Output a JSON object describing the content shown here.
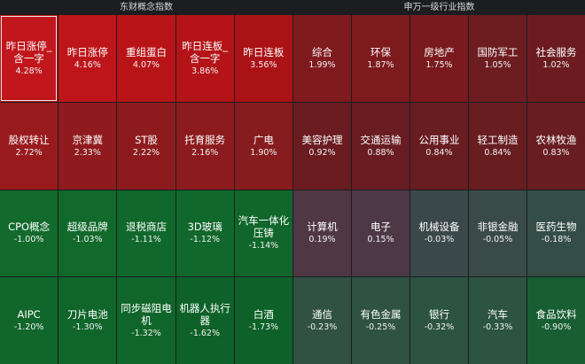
{
  "left_panel": {
    "title": "东财概念指数",
    "tiles": [
      {
        "name": "昨日涨停_含一字",
        "pct": "4.28%",
        "color": "#c0161c",
        "selected": true
      },
      {
        "name": "昨日涨停",
        "pct": "4.16%",
        "color": "#bd1519"
      },
      {
        "name": "重组蛋白",
        "pct": "4.07%",
        "color": "#b81418"
      },
      {
        "name": "昨日连板_含一字",
        "pct": "3.86%",
        "color": "#b41317"
      },
      {
        "name": "昨日连板",
        "pct": "3.56%",
        "color": "#ab1216"
      },
      {
        "name": "股权转让",
        "pct": "2.72%",
        "color": "#981a1d"
      },
      {
        "name": "京津冀",
        "pct": "2.33%",
        "color": "#901b1e"
      },
      {
        "name": "ST股",
        "pct": "2.22%",
        "color": "#8d1b1e"
      },
      {
        "name": "托育服务",
        "pct": "2.16%",
        "color": "#8c1b1e"
      },
      {
        "name": "广电",
        "pct": "1.90%",
        "color": "#871c1f"
      },
      {
        "name": "CPO概念",
        "pct": "-1.00%",
        "color": "#126a2d"
      },
      {
        "name": "超级品牌",
        "pct": "-1.03%",
        "color": "#11692c"
      },
      {
        "name": "退税商店",
        "pct": "-1.11%",
        "color": "#11682c"
      },
      {
        "name": "3D玻璃",
        "pct": "-1.12%",
        "color": "#11682c"
      },
      {
        "name": "汽车一体化压铸",
        "pct": "-1.14%",
        "color": "#11672b"
      },
      {
        "name": "AIPC",
        "pct": "-1.20%",
        "color": "#10662b"
      },
      {
        "name": "刀片电池",
        "pct": "-1.30%",
        "color": "#0f652a"
      },
      {
        "name": "同步磁阻电机",
        "pct": "-1.32%",
        "color": "#0f652a"
      },
      {
        "name": "机器人执行器",
        "pct": "-1.62%",
        "color": "#0e6229"
      },
      {
        "name": "白酒",
        "pct": "-1.73%",
        "color": "#0e6129"
      }
    ]
  },
  "right_panel": {
    "title": "申万一级行业指数",
    "tiles": [
      {
        "name": "综合",
        "pct": "1.99%",
        "color": "#7f1a1e"
      },
      {
        "name": "环保",
        "pct": "1.87%",
        "color": "#7d1a1e"
      },
      {
        "name": "房地产",
        "pct": "1.75%",
        "color": "#7a1a1e"
      },
      {
        "name": "国防军工",
        "pct": "1.05%",
        "color": "#6d1c20"
      },
      {
        "name": "社会服务",
        "pct": "1.02%",
        "color": "#6c1c20"
      },
      {
        "name": "美容护理",
        "pct": "0.92%",
        "color": "#6a1c21"
      },
      {
        "name": "交通运输",
        "pct": "0.88%",
        "color": "#691c21"
      },
      {
        "name": "公用事业",
        "pct": "0.84%",
        "color": "#681d21"
      },
      {
        "name": "轻工制造",
        "pct": "0.84%",
        "color": "#681d21"
      },
      {
        "name": "农林牧渔",
        "pct": "0.83%",
        "color": "#681d21"
      },
      {
        "name": "计算机",
        "pct": "0.19%",
        "color": "#4f3744"
      },
      {
        "name": "电子",
        "pct": "0.15%",
        "color": "#4d3946"
      },
      {
        "name": "机械设备",
        "pct": "-0.03%",
        "color": "#3b4849"
      },
      {
        "name": "非银金融",
        "pct": "-0.05%",
        "color": "#3a4a48"
      },
      {
        "name": "医药生物",
        "pct": "-0.18%",
        "color": "#344d46"
      },
      {
        "name": "通信",
        "pct": "-0.23%",
        "color": "#305143"
      },
      {
        "name": "有色金属",
        "pct": "-0.25%",
        "color": "#2f5243"
      },
      {
        "name": "银行",
        "pct": "-0.32%",
        "color": "#2c5441"
      },
      {
        "name": "汽车",
        "pct": "-0.33%",
        "color": "#2c5441"
      },
      {
        "name": "食品饮料",
        "pct": "-0.90%",
        "color": "#175e33"
      }
    ]
  }
}
